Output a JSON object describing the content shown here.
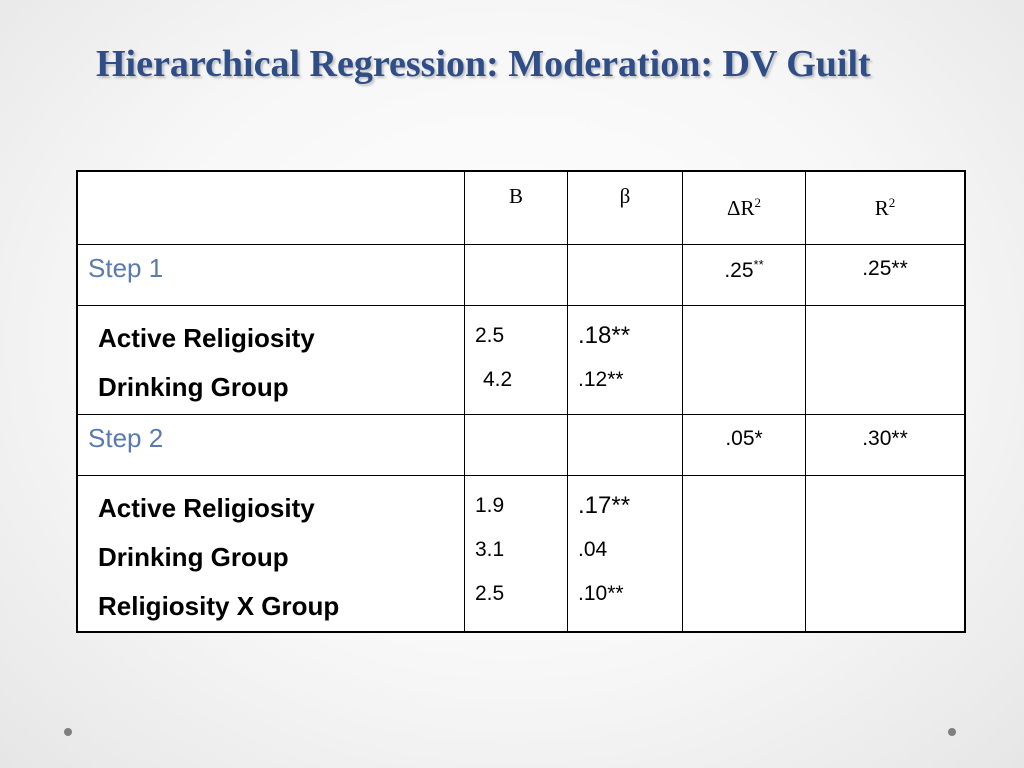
{
  "slide": {
    "title": "Hierarchical Regression: Moderation: DV Guilt"
  },
  "table": {
    "headers": [
      "",
      "B",
      "β",
      "ΔR",
      "R"
    ],
    "header_sup": [
      "",
      "",
      "",
      "2",
      "2"
    ],
    "step1": {
      "label": "Step 1",
      "delta_r2": ".25",
      "delta_r2_sig": "**",
      "r2": ".25**"
    },
    "step1_vars": [
      {
        "name": "Active Religiosity",
        "b": "2.5",
        "beta": ".18**"
      },
      {
        "name": "Drinking Group",
        "b": " 4.2",
        "beta": ".12**"
      }
    ],
    "step2": {
      "label": "Step 2",
      "delta_r2": ".05*",
      "r2": ".30**"
    },
    "step2_vars": [
      {
        "name": "Active Religiosity",
        "b": "1.9",
        "beta": ".17**"
      },
      {
        "name": "Drinking Group",
        "b": "3.1",
        "beta": ".04"
      },
      {
        "name": "Religiosity X Group",
        "b": "2.5",
        "beta": ".10**"
      }
    ]
  },
  "colors": {
    "title": "#2f4d87",
    "step_label": "#5a7ab0",
    "decor_dots": "#7f7f7f"
  }
}
